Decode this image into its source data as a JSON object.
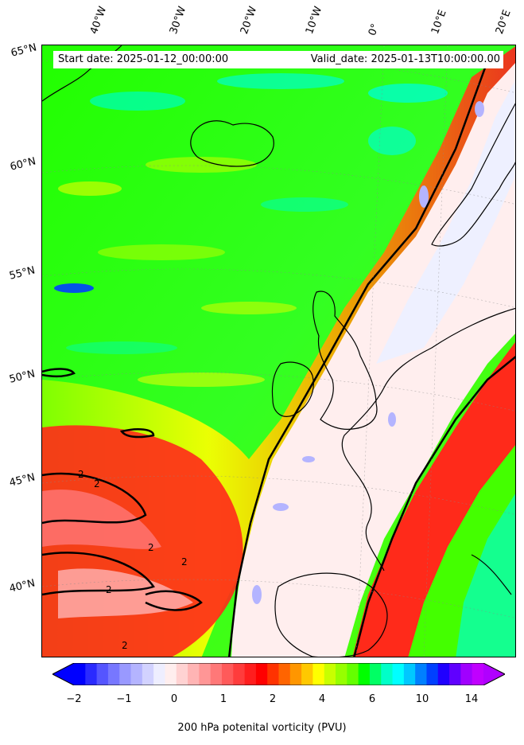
{
  "header": {
    "start_date": "Start date: 2025-01-12_00:00:00",
    "valid_date": "Valid_date: 2025-01-13T10:00:00.00"
  },
  "lon_labels": [
    "40°W",
    "30°W",
    "20°W",
    "10°W",
    "0°",
    "10°E",
    "20°E"
  ],
  "lat_labels": [
    "65°N",
    "60°N",
    "55°N",
    "50°N",
    "45°N",
    "40°N"
  ],
  "contour_label": "2",
  "colorbar": {
    "label": "200 hPa potenital vorticity (PVU)",
    "tick_labels": [
      "−2",
      "−1",
      "0",
      "1",
      "2",
      "4",
      "6",
      "10",
      "14"
    ],
    "colors": [
      "#0000ff",
      "#2a2aff",
      "#5555ff",
      "#7777ff",
      "#9999ff",
      "#b4b4ff",
      "#d2d2ff",
      "#eeeeff",
      "#ffeeee",
      "#ffd2d2",
      "#ffb4b4",
      "#ff9696",
      "#ff7878",
      "#ff5a5a",
      "#ff3c3c",
      "#ff1e1e",
      "#ff0000",
      "#ff3200",
      "#ff6400",
      "#ff9600",
      "#ffc800",
      "#ffff00",
      "#c8ff00",
      "#96ff00",
      "#64ff00",
      "#00ff00",
      "#00ff64",
      "#00ffc8",
      "#00ffff",
      "#00c8ff",
      "#0080ff",
      "#0040ff",
      "#2000ff",
      "#6000ff",
      "#a000ff",
      "#c000ff"
    ],
    "extend_low": "#0000ff",
    "extend_high": "#b000ff"
  },
  "legend_colors": {
    "low_pv": "#f2f0ff",
    "high_pv_red": "#ff2a1a",
    "mid_green": "#22ff00",
    "high_cyan": "#00ffcc",
    "coastline": "#000000"
  }
}
